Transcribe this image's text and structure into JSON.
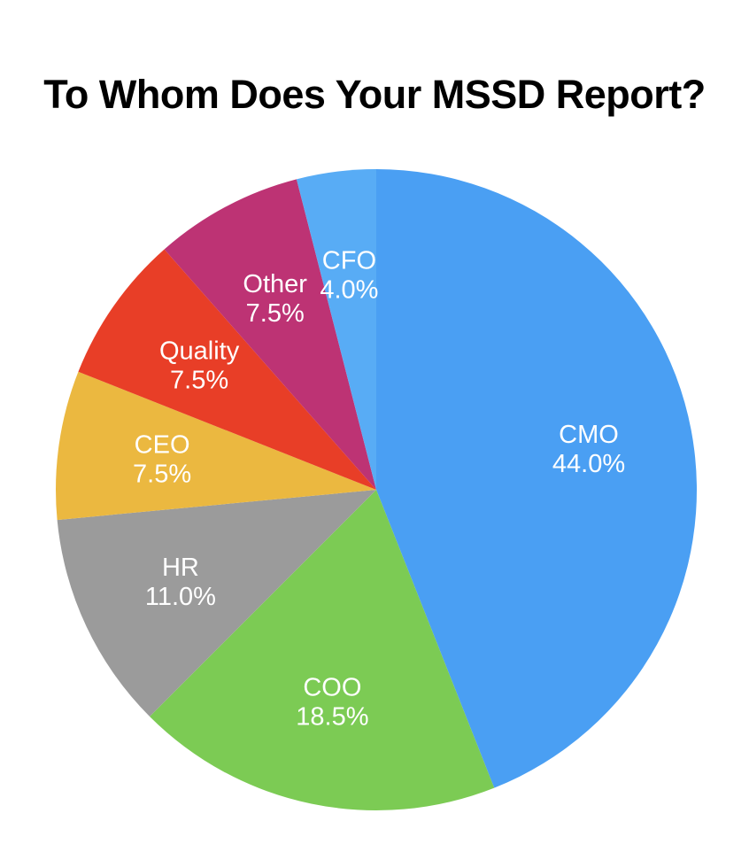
{
  "page": {
    "background_color": "#ffffff"
  },
  "chart_data": {
    "type": "pie",
    "title": "To Whom Does Your MSSD Report?",
    "title_color": "#000000",
    "categories": [
      "CMO",
      "COO",
      "HR",
      "CEO",
      "Quality",
      "Other",
      "CFO"
    ],
    "values": [
      44.0,
      18.5,
      11.0,
      7.5,
      7.5,
      7.5,
      4.0
    ],
    "percent_labels": [
      "44.0%",
      "18.5%",
      "11.0%",
      "7.5%",
      "7.5%",
      "7.5%",
      "4.0%"
    ],
    "colors": [
      "#4A9FF3",
      "#7CCB54",
      "#9B9B9B",
      "#EBB840",
      "#E83E27",
      "#BD3374",
      "#58ACF5"
    ],
    "label_text_color": "#FFFFFF",
    "start_angle_deg": 0,
    "direction": "clockwise",
    "label_radius_fraction": 0.675,
    "legend": "none"
  }
}
